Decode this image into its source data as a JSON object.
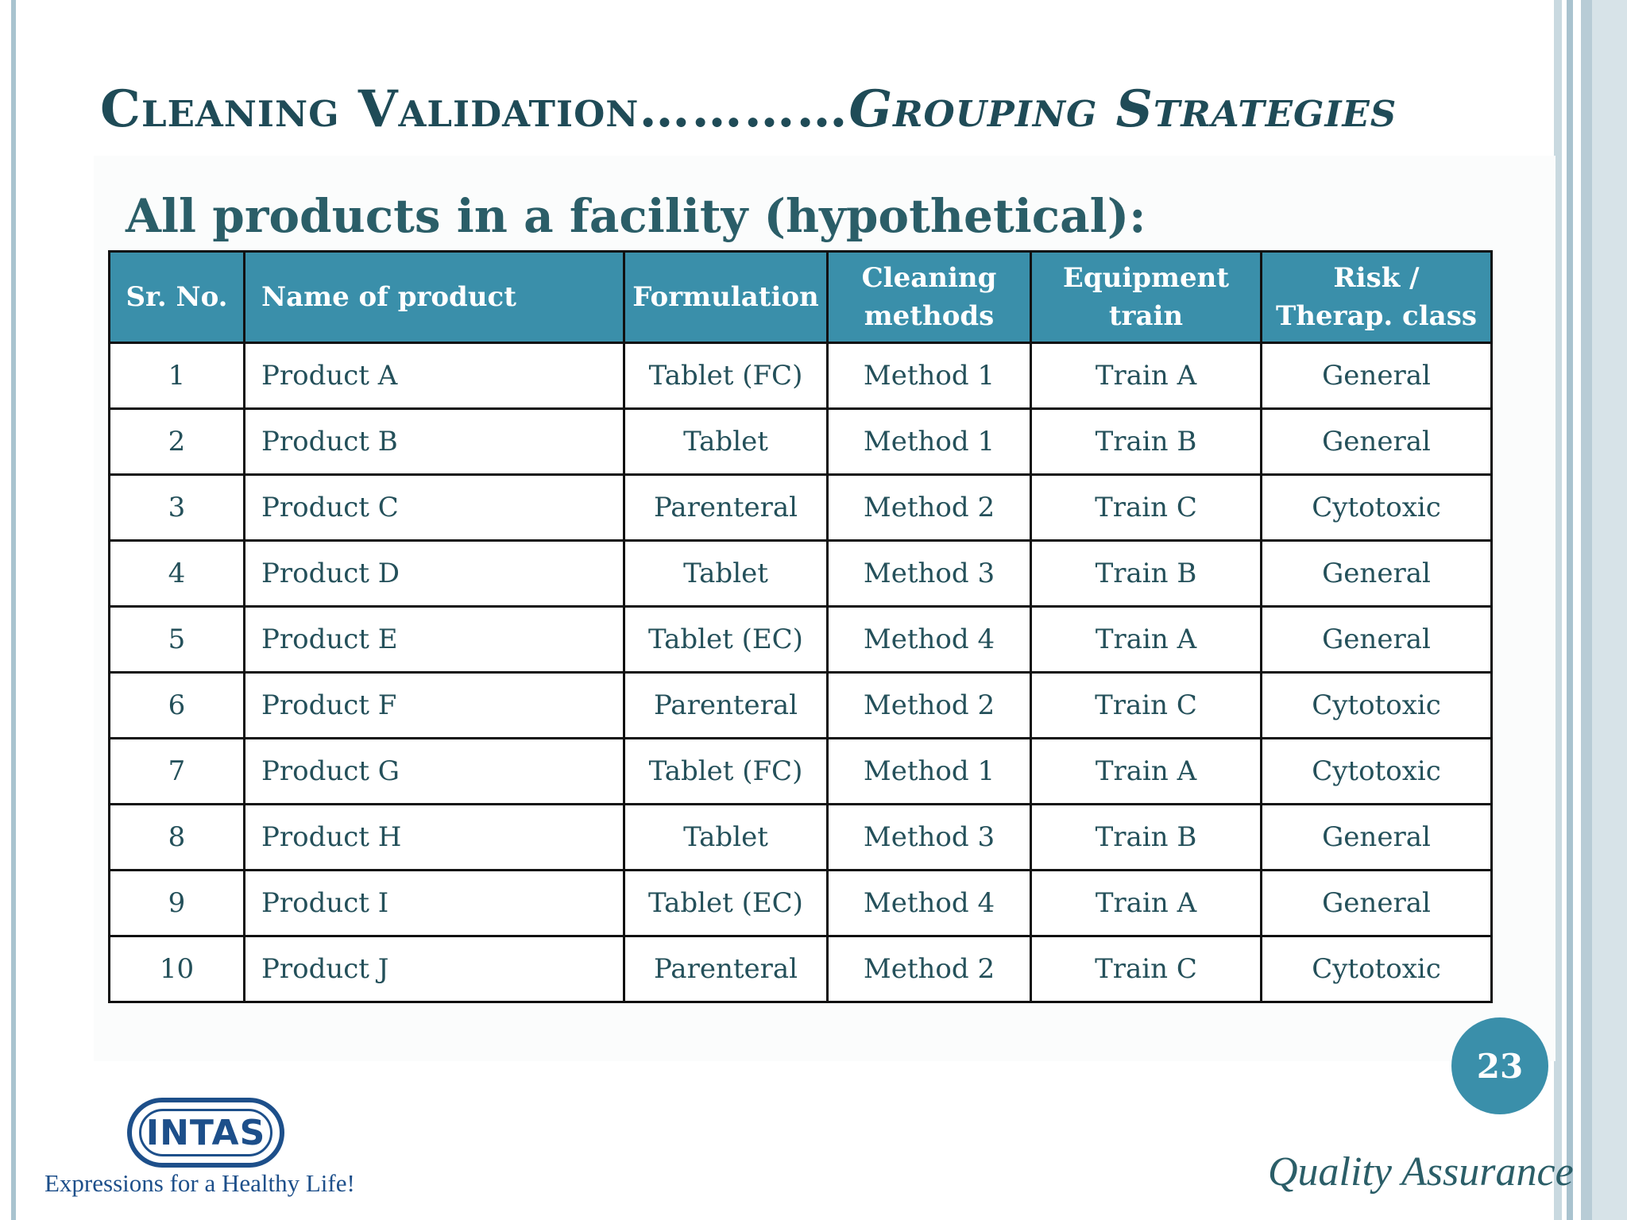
{
  "slide": {
    "title_main": "Cleaning Validation",
    "title_dots": "…………",
    "title_italic": "Grouping  Strategies",
    "subtitle": "All products in a facility (hypothetical):",
    "page_number": "23",
    "logo_text": "INTAS",
    "tagline": "Expressions for a Healthy Life!",
    "footer": "Quality Assurance"
  },
  "table": {
    "headers": {
      "sr_no": "Sr. No.",
      "name": "Name of product",
      "formulation": "Formulation",
      "cleaning_l1": "Cleaning",
      "cleaning_l2": "methods",
      "equipment_l1": "Equipment",
      "equipment_l2": "train",
      "risk_l1": "Risk /",
      "risk_l2": "Therap. class"
    },
    "rows": [
      {
        "sr": "1",
        "name": "Product A",
        "formulation": "Tablet (FC)",
        "method": "Method 1",
        "train": "Train A",
        "risk": "General"
      },
      {
        "sr": "2",
        "name": "Product B",
        "formulation": "Tablet",
        "method": "Method 1",
        "train": "Train B",
        "risk": "General"
      },
      {
        "sr": "3",
        "name": "Product C",
        "formulation": "Parenteral",
        "method": "Method 2",
        "train": "Train C",
        "risk": "Cytotoxic"
      },
      {
        "sr": "4",
        "name": "Product D",
        "formulation": "Tablet",
        "method": "Method 3",
        "train": "Train B",
        "risk": "General"
      },
      {
        "sr": "5",
        "name": "Product E",
        "formulation": "Tablet (EC)",
        "method": "Method 4",
        "train": "Train A",
        "risk": "General"
      },
      {
        "sr": "6",
        "name": "Product F",
        "formulation": "Parenteral",
        "method": "Method 2",
        "train": "Train C",
        "risk": "Cytotoxic"
      },
      {
        "sr": "7",
        "name": "Product G",
        "formulation": "Tablet (FC)",
        "method": "Method 1",
        "train": "Train A",
        "risk": "Cytotoxic"
      },
      {
        "sr": "8",
        "name": "Product H",
        "formulation": "Tablet",
        "method": "Method 3",
        "train": "Train B",
        "risk": "General"
      },
      {
        "sr": "9",
        "name": "Product I",
        "formulation": "Tablet (EC)",
        "method": "Method 4",
        "train": "Train A",
        "risk": "General"
      },
      {
        "sr": "10",
        "name": "Product J",
        "formulation": "Parenteral",
        "method": "Method 2",
        "train": "Train C",
        "risk": "Cytotoxic"
      }
    ]
  },
  "colors": {
    "header_bg": "#3a8faa",
    "title_text": "#1f4b57",
    "body_text": "#24505a",
    "logo_blue": "#1d4f8a"
  }
}
